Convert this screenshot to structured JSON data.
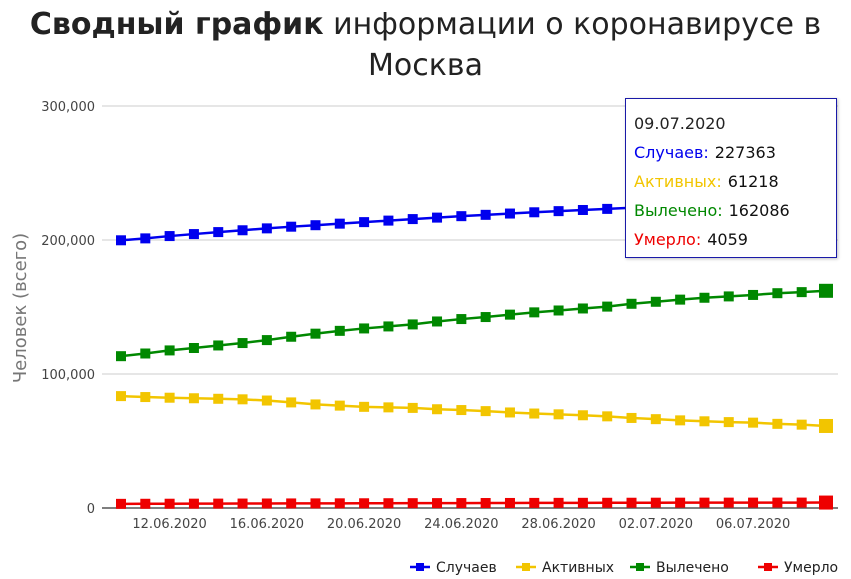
{
  "title_bold": "Сводный график",
  "title_rest": " информации о коронавирусе в Москва",
  "tooltip": {
    "date": "09.07.2020",
    "rows": [
      {
        "label": "Случаев:",
        "value": "227363",
        "color": "#0000ee"
      },
      {
        "label": "Активных:",
        "value": "61218",
        "color": "#f2c500"
      },
      {
        "label": "Вылечено:",
        "value": "162086",
        "color": "#008800"
      },
      {
        "label": "Умерло:",
        "value": "4059",
        "color": "#ee0000"
      }
    ]
  },
  "chart_data": {
    "type": "line",
    "ylabel": "Человек (всего)",
    "ylim": [
      0,
      300000
    ],
    "yticks": [
      0,
      100000,
      200000,
      300000
    ],
    "ytick_labels": [
      "0",
      "100,000",
      "200,000",
      "300,000"
    ],
    "grid": true,
    "legend_position": "bottom-right",
    "x": [
      "10.06.2020",
      "11.06.2020",
      "12.06.2020",
      "13.06.2020",
      "14.06.2020",
      "15.06.2020",
      "16.06.2020",
      "17.06.2020",
      "18.06.2020",
      "19.06.2020",
      "20.06.2020",
      "21.06.2020",
      "22.06.2020",
      "23.06.2020",
      "24.06.2020",
      "25.06.2020",
      "26.06.2020",
      "27.06.2020",
      "28.06.2020",
      "29.06.2020",
      "30.06.2020",
      "01.07.2020",
      "02.07.2020",
      "03.07.2020",
      "04.07.2020",
      "05.07.2020",
      "06.07.2020",
      "07.07.2020",
      "08.07.2020",
      "09.07.2020"
    ],
    "xtick_labels": [
      "12.06.2020",
      "16.06.2020",
      "20.06.2020",
      "24.06.2020",
      "28.06.2020",
      "02.07.2020",
      "06.07.2020"
    ],
    "xtick_index": [
      2,
      6,
      10,
      14,
      18,
      22,
      26
    ],
    "highlight_index": 29,
    "series": [
      {
        "name": "Случаев",
        "color": "#0000ee",
        "values": [
          199785,
          201211,
          202935,
          204428,
          205905,
          207264,
          208680,
          209933,
          211041,
          212201,
          213345,
          214474,
          215614,
          216710,
          217791,
          218782,
          219744,
          220683,
          221543,
          222393,
          223216,
          224112,
          224839,
          225621,
          226371,
          227089,
          227894,
          228600,
          229300,
          227363
        ]
      },
      {
        "name": "Активных",
        "color": "#f2c500",
        "values": [
          83500,
          82800,
          82300,
          81900,
          81500,
          81100,
          80200,
          78800,
          77300,
          76400,
          75500,
          75100,
          74700,
          73700,
          73100,
          72300,
          71300,
          70500,
          69900,
          69200,
          68400,
          67200,
          66300,
          65400,
          64700,
          64100,
          63700,
          62800,
          62200,
          61218
        ]
      },
      {
        "name": "Вылечено",
        "color": "#008800",
        "values": [
          113300,
          115300,
          117600,
          119400,
          121300,
          123100,
          125300,
          127800,
          130100,
          132200,
          134000,
          135500,
          137000,
          139200,
          141000,
          142500,
          144300,
          146000,
          147400,
          148900,
          150300,
          152400,
          153900,
          155500,
          156900,
          157900,
          159000,
          160300,
          161100,
          162086
        ]
      },
      {
        "name": "Умерло",
        "color": "#ee0000",
        "values": [
          3100,
          3150,
          3190,
          3240,
          3280,
          3320,
          3370,
          3410,
          3450,
          3490,
          3530,
          3570,
          3600,
          3640,
          3680,
          3720,
          3760,
          3800,
          3840,
          3870,
          3900,
          3930,
          3960,
          3980,
          4000,
          4010,
          4020,
          4030,
          4040,
          4059
        ]
      }
    ]
  }
}
